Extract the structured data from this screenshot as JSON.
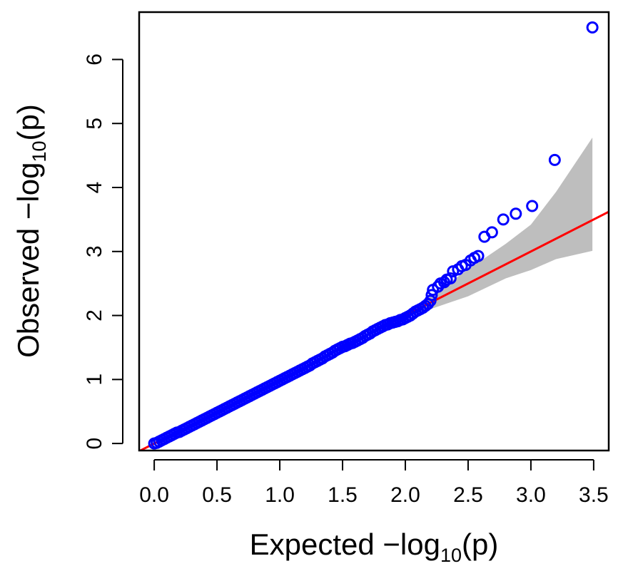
{
  "chart_data": {
    "type": "scatter",
    "title": "",
    "xlabel": {
      "prefix": "Expected  −log",
      "subscript": "10",
      "suffix": "(p)"
    },
    "ylabel": {
      "prefix": "Observed  −log",
      "subscript": "10",
      "suffix": "(p)"
    },
    "xlim": [
      -0.12,
      3.62
    ],
    "ylim": [
      -0.11,
      6.74
    ],
    "x_ticks": [
      {
        "value": 0.0,
        "label": "0.0"
      },
      {
        "value": 0.5,
        "label": "0.5"
      },
      {
        "value": 1.0,
        "label": "1.0"
      },
      {
        "value": 1.5,
        "label": "1.5"
      },
      {
        "value": 2.0,
        "label": "2.0"
      },
      {
        "value": 2.5,
        "label": "2.5"
      },
      {
        "value": 3.0,
        "label": "3.0"
      },
      {
        "value": 3.5,
        "label": "3.5"
      }
    ],
    "y_ticks": [
      {
        "value": 0,
        "label": "0"
      },
      {
        "value": 1,
        "label": "1"
      },
      {
        "value": 2,
        "label": "2"
      },
      {
        "value": 3,
        "label": "3"
      },
      {
        "value": 4,
        "label": "4"
      },
      {
        "value": 5,
        "label": "5"
      },
      {
        "value": 6,
        "label": "6"
      }
    ],
    "grid": false,
    "legend": "none",
    "colors": {
      "points": "#0000ff",
      "reference_line": "#ff0000",
      "confidence_band": "#bebebe",
      "frame": "#000000"
    },
    "reference_line": {
      "slope": 1,
      "intercept": 0
    },
    "confidence_band": {
      "x": [
        2.0,
        2.2,
        2.5,
        2.8,
        3.0,
        3.2,
        3.49
      ],
      "lower": [
        2.0,
        2.1,
        2.3,
        2.58,
        2.71,
        2.88,
        3.01
      ],
      "upper": [
        2.0,
        2.3,
        2.72,
        3.12,
        3.42,
        3.93,
        4.78
      ]
    },
    "series": [
      {
        "points": [
          {
            "x": 0.0,
            "y": 0.0
          },
          {
            "x": 0.02,
            "y": 0.01
          },
          {
            "x": 0.04,
            "y": 0.03
          },
          {
            "x": 0.06,
            "y": 0.05
          },
          {
            "x": 0.08,
            "y": 0.07
          },
          {
            "x": 0.1,
            "y": 0.09
          },
          {
            "x": 0.12,
            "y": 0.11
          },
          {
            "x": 0.14,
            "y": 0.13
          },
          {
            "x": 0.16,
            "y": 0.15
          },
          {
            "x": 0.18,
            "y": 0.17
          },
          {
            "x": 0.2,
            "y": 0.18
          },
          {
            "x": 0.22,
            "y": 0.2
          },
          {
            "x": 0.24,
            "y": 0.22
          },
          {
            "x": 0.26,
            "y": 0.24
          },
          {
            "x": 0.28,
            "y": 0.26
          },
          {
            "x": 0.3,
            "y": 0.28
          },
          {
            "x": 0.32,
            "y": 0.3
          },
          {
            "x": 0.34,
            "y": 0.32
          },
          {
            "x": 0.36,
            "y": 0.34
          },
          {
            "x": 0.38,
            "y": 0.36
          },
          {
            "x": 0.4,
            "y": 0.38
          },
          {
            "x": 0.42,
            "y": 0.4
          },
          {
            "x": 0.44,
            "y": 0.42
          },
          {
            "x": 0.46,
            "y": 0.44
          },
          {
            "x": 0.48,
            "y": 0.46
          },
          {
            "x": 0.5,
            "y": 0.48
          },
          {
            "x": 0.52,
            "y": 0.5
          },
          {
            "x": 0.54,
            "y": 0.52
          },
          {
            "x": 0.56,
            "y": 0.54
          },
          {
            "x": 0.58,
            "y": 0.56
          },
          {
            "x": 0.6,
            "y": 0.58
          },
          {
            "x": 0.62,
            "y": 0.6
          },
          {
            "x": 0.64,
            "y": 0.62
          },
          {
            "x": 0.66,
            "y": 0.64
          },
          {
            "x": 0.68,
            "y": 0.66
          },
          {
            "x": 0.7,
            "y": 0.68
          },
          {
            "x": 0.72,
            "y": 0.7
          },
          {
            "x": 0.74,
            "y": 0.72
          },
          {
            "x": 0.76,
            "y": 0.74
          },
          {
            "x": 0.78,
            "y": 0.76
          },
          {
            "x": 0.8,
            "y": 0.78
          },
          {
            "x": 0.82,
            "y": 0.8
          },
          {
            "x": 0.84,
            "y": 0.82
          },
          {
            "x": 0.86,
            "y": 0.84
          },
          {
            "x": 0.88,
            "y": 0.86
          },
          {
            "x": 0.9,
            "y": 0.88
          },
          {
            "x": 0.92,
            "y": 0.9
          },
          {
            "x": 0.94,
            "y": 0.92
          },
          {
            "x": 0.96,
            "y": 0.94
          },
          {
            "x": 0.98,
            "y": 0.96
          },
          {
            "x": 1.0,
            "y": 0.98
          },
          {
            "x": 1.02,
            "y": 1.0
          },
          {
            "x": 1.04,
            "y": 1.02
          },
          {
            "x": 1.06,
            "y": 1.04
          },
          {
            "x": 1.08,
            "y": 1.06
          },
          {
            "x": 1.1,
            "y": 1.08
          },
          {
            "x": 1.12,
            "y": 1.1
          },
          {
            "x": 1.14,
            "y": 1.12
          },
          {
            "x": 1.16,
            "y": 1.14
          },
          {
            "x": 1.18,
            "y": 1.16
          },
          {
            "x": 1.2,
            "y": 1.18
          },
          {
            "x": 1.22,
            "y": 1.2
          },
          {
            "x": 1.24,
            "y": 1.22
          },
          {
            "x": 1.26,
            "y": 1.25
          },
          {
            "x": 1.28,
            "y": 1.27
          },
          {
            "x": 1.3,
            "y": 1.29
          },
          {
            "x": 1.32,
            "y": 1.31
          },
          {
            "x": 1.34,
            "y": 1.33
          },
          {
            "x": 1.36,
            "y": 1.36
          },
          {
            "x": 1.38,
            "y": 1.38
          },
          {
            "x": 1.4,
            "y": 1.4
          },
          {
            "x": 1.42,
            "y": 1.42
          },
          {
            "x": 1.44,
            "y": 1.45
          },
          {
            "x": 1.46,
            "y": 1.47
          },
          {
            "x": 1.48,
            "y": 1.49
          },
          {
            "x": 1.5,
            "y": 1.51
          },
          {
            "x": 1.52,
            "y": 1.52
          },
          {
            "x": 1.54,
            "y": 1.54
          },
          {
            "x": 1.56,
            "y": 1.56
          },
          {
            "x": 1.58,
            "y": 1.57
          },
          {
            "x": 1.6,
            "y": 1.59
          },
          {
            "x": 1.62,
            "y": 1.61
          },
          {
            "x": 1.64,
            "y": 1.63
          },
          {
            "x": 1.66,
            "y": 1.65
          },
          {
            "x": 1.68,
            "y": 1.68
          },
          {
            "x": 1.7,
            "y": 1.7
          },
          {
            "x": 1.72,
            "y": 1.72
          },
          {
            "x": 1.74,
            "y": 1.75
          },
          {
            "x": 1.76,
            "y": 1.77
          },
          {
            "x": 1.78,
            "y": 1.79
          },
          {
            "x": 1.8,
            "y": 1.81
          },
          {
            "x": 1.82,
            "y": 1.83
          },
          {
            "x": 1.84,
            "y": 1.85
          },
          {
            "x": 1.86,
            "y": 1.86
          },
          {
            "x": 1.88,
            "y": 1.88
          },
          {
            "x": 1.9,
            "y": 1.89
          },
          {
            "x": 1.92,
            "y": 1.9
          },
          {
            "x": 1.94,
            "y": 1.91
          },
          {
            "x": 1.96,
            "y": 1.93
          },
          {
            "x": 1.98,
            "y": 1.94
          },
          {
            "x": 2.0,
            "y": 1.96
          },
          {
            "x": 2.02,
            "y": 1.98
          },
          {
            "x": 2.04,
            "y": 2.0
          },
          {
            "x": 2.06,
            "y": 2.03
          },
          {
            "x": 2.08,
            "y": 2.06
          },
          {
            "x": 2.1,
            "y": 2.08
          },
          {
            "x": 2.12,
            "y": 2.1
          },
          {
            "x": 2.14,
            "y": 2.12
          },
          {
            "x": 2.16,
            "y": 2.15
          },
          {
            "x": 2.18,
            "y": 2.18
          },
          {
            "x": 2.2,
            "y": 2.23
          },
          {
            "x": 2.21,
            "y": 2.32
          },
          {
            "x": 2.22,
            "y": 2.4
          },
          {
            "x": 2.26,
            "y": 2.45
          },
          {
            "x": 2.28,
            "y": 2.5
          },
          {
            "x": 2.31,
            "y": 2.52
          },
          {
            "x": 2.33,
            "y": 2.56
          },
          {
            "x": 2.36,
            "y": 2.58
          },
          {
            "x": 2.38,
            "y": 2.69
          },
          {
            "x": 2.42,
            "y": 2.72
          },
          {
            "x": 2.45,
            "y": 2.77
          },
          {
            "x": 2.48,
            "y": 2.79
          },
          {
            "x": 2.52,
            "y": 2.86
          },
          {
            "x": 2.55,
            "y": 2.9
          },
          {
            "x": 2.58,
            "y": 2.93
          },
          {
            "x": 2.63,
            "y": 3.23
          },
          {
            "x": 2.69,
            "y": 3.3
          },
          {
            "x": 2.78,
            "y": 3.5
          },
          {
            "x": 2.88,
            "y": 3.59
          },
          {
            "x": 3.01,
            "y": 3.71
          },
          {
            "x": 3.19,
            "y": 4.43
          },
          {
            "x": 3.49,
            "y": 6.5
          }
        ]
      }
    ]
  }
}
